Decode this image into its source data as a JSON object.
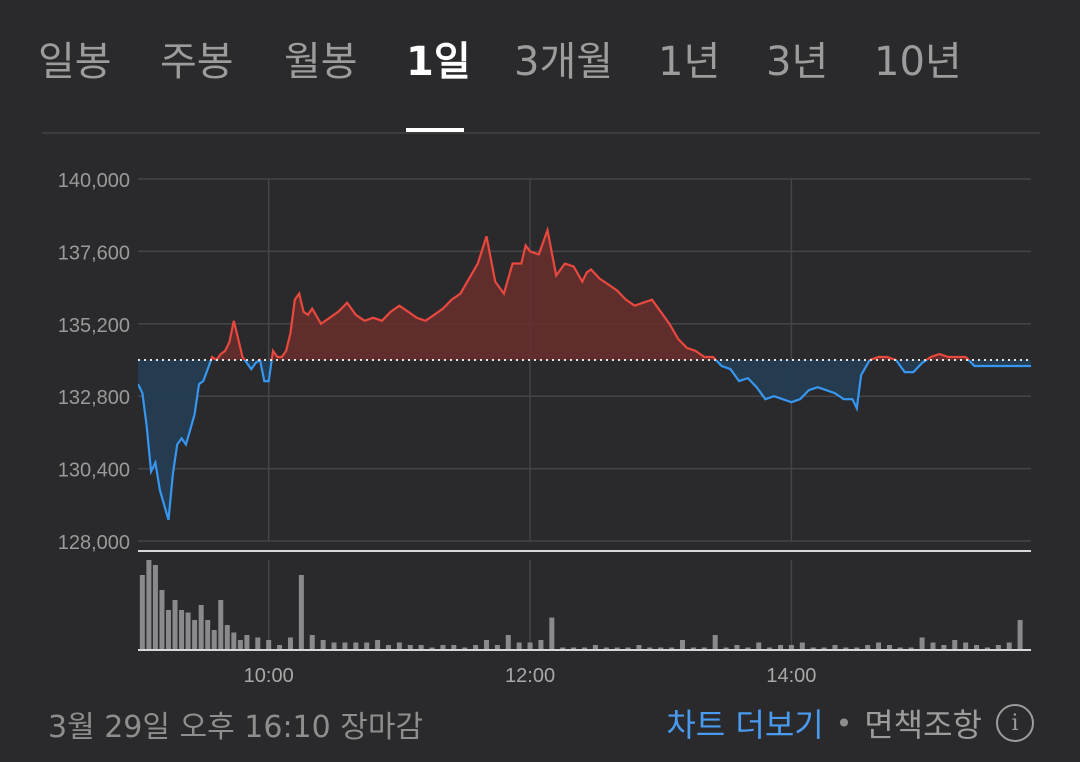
{
  "tabs": [
    {
      "label": "일봉",
      "active": false
    },
    {
      "label": "주봉",
      "active": false
    },
    {
      "label": "월봉",
      "active": false
    },
    {
      "label": "1일",
      "active": true
    },
    {
      "label": "3개월",
      "active": false
    },
    {
      "label": "1년",
      "active": false
    },
    {
      "label": "3년",
      "active": false
    },
    {
      "label": "10년",
      "active": false
    }
  ],
  "chart_data": {
    "type": "line",
    "y_ticks": [
      "140,000",
      "137,600",
      "135,200",
      "132,800",
      "130,400",
      "128,000"
    ],
    "ylim": [
      128000,
      140000
    ],
    "x_ticks": [
      "10:00",
      "12:00",
      "14:00"
    ],
    "x_tick_minutes": [
      60,
      180,
      300
    ],
    "xlim_minutes": [
      0,
      410
    ],
    "baseline": 134000,
    "colors": {
      "up": "#e8483e",
      "down": "#3796f0",
      "up_fill": "#6a2e2e",
      "down_fill": "#243c52",
      "baseline": "#e6e6e6",
      "grid": "#454548",
      "volume": "#8a8a8e"
    },
    "price": {
      "minutes": [
        0,
        2,
        4,
        6,
        8,
        10,
        12,
        14,
        16,
        18,
        20,
        22,
        24,
        26,
        28,
        30,
        32,
        34,
        36,
        38,
        40,
        42,
        44,
        46,
        48,
        50,
        52,
        54,
        56,
        58,
        60,
        62,
        64,
        66,
        68,
        70,
        72,
        74,
        76,
        78,
        80,
        84,
        88,
        92,
        96,
        100,
        104,
        108,
        112,
        116,
        120,
        124,
        128,
        132,
        136,
        140,
        144,
        148,
        152,
        156,
        160,
        164,
        168,
        172,
        176,
        178,
        180,
        184,
        188,
        192,
        196,
        200,
        204,
        206,
        208,
        212,
        216,
        220,
        224,
        228,
        232,
        236,
        240,
        244,
        248,
        252,
        256,
        260,
        264,
        268,
        272,
        276,
        280,
        284,
        288,
        292,
        296,
        300,
        304,
        308,
        312,
        316,
        320,
        324,
        328,
        330,
        332,
        336,
        340,
        344,
        348,
        352,
        356,
        360,
        364,
        368,
        372,
        376,
        380,
        384,
        410
      ],
      "values": [
        133200,
        132900,
        131800,
        130300,
        130600,
        129700,
        129200,
        128700,
        130200,
        131200,
        131400,
        131200,
        131700,
        132200,
        133200,
        133300,
        133700,
        134100,
        134000,
        134200,
        134300,
        134600,
        135300,
        134700,
        134100,
        133900,
        133700,
        133900,
        134000,
        133300,
        133300,
        134300,
        134100,
        134100,
        134300,
        134900,
        136000,
        136200,
        135600,
        135500,
        135700,
        135200,
        135400,
        135600,
        135900,
        135500,
        135300,
        135400,
        135300,
        135600,
        135800,
        135600,
        135400,
        135300,
        135500,
        135700,
        136000,
        136200,
        136700,
        137200,
        138100,
        136600,
        136200,
        137200,
        137200,
        137800,
        137600,
        137500,
        138300,
        136800,
        137200,
        137100,
        136600,
        136900,
        137000,
        136700,
        136500,
        136300,
        136000,
        135800,
        135900,
        136000,
        135600,
        135200,
        134700,
        134400,
        134300,
        134100,
        134100,
        133800,
        133700,
        133300,
        133400,
        133100,
        132700,
        132800,
        132700,
        132600,
        132700,
        133000,
        133100,
        133000,
        132900,
        132700,
        132700,
        132400,
        133500,
        134000,
        134100,
        134100,
        134000,
        133600,
        133600,
        133900,
        134100,
        134200,
        134100,
        134100,
        134100,
        133800,
        133800
      ]
    },
    "volume": {
      "minutes": [
        2,
        5,
        8,
        11,
        14,
        17,
        20,
        23,
        26,
        29,
        32,
        35,
        38,
        41,
        44,
        47,
        50,
        55,
        60,
        65,
        70,
        75,
        80,
        85,
        90,
        95,
        100,
        105,
        110,
        115,
        120,
        125,
        130,
        135,
        140,
        145,
        150,
        155,
        160,
        165,
        170,
        175,
        180,
        185,
        190,
        195,
        200,
        205,
        210,
        215,
        220,
        225,
        230,
        235,
        240,
        245,
        250,
        255,
        260,
        265,
        270,
        275,
        280,
        285,
        290,
        295,
        300,
        305,
        310,
        315,
        320,
        325,
        330,
        335,
        340,
        345,
        350,
        355,
        360,
        365,
        370,
        375,
        380,
        385,
        390,
        395,
        400,
        405
      ],
      "values": [
        30,
        36,
        34,
        24,
        16,
        20,
        16,
        15,
        12,
        18,
        12,
        8,
        20,
        10,
        7,
        4,
        6,
        5,
        4,
        2,
        5,
        30,
        6,
        4,
        3,
        3,
        3,
        3,
        4,
        2,
        3,
        2,
        2,
        1,
        2,
        2,
        1,
        2,
        4,
        2,
        6,
        3,
        3,
        4,
        13,
        1,
        1,
        1,
        2,
        1,
        1,
        1,
        2,
        1,
        1,
        1,
        4,
        1,
        1,
        6,
        1,
        2,
        1,
        3,
        1,
        2,
        2,
        3,
        1,
        1,
        2,
        1,
        1,
        2,
        3,
        2,
        1,
        1,
        5,
        3,
        2,
        4,
        3,
        2,
        1,
        2,
        3,
        12
      ]
    }
  },
  "footer": {
    "date_text": "3월 29일 오후 16:10 장마감",
    "more_link": "차트 더보기",
    "separator": "•",
    "disclaimer": "면책조항",
    "info_glyph": "i"
  }
}
